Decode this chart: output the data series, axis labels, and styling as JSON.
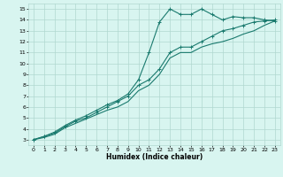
{
  "xlabel": "Humidex (Indice chaleur)",
  "bg_color": "#d8f5f0",
  "grid_color": "#b0d8d0",
  "line_color": "#1a7a6e",
  "xlim": [
    -0.5,
    23.5
  ],
  "ylim": [
    2.5,
    15.5
  ],
  "xticks": [
    0,
    1,
    2,
    3,
    4,
    5,
    6,
    7,
    8,
    9,
    10,
    11,
    12,
    13,
    14,
    15,
    16,
    17,
    18,
    19,
    20,
    21,
    22,
    23
  ],
  "yticks": [
    3,
    4,
    5,
    6,
    7,
    8,
    9,
    10,
    11,
    12,
    13,
    14,
    15
  ],
  "line2_x": [
    0,
    1,
    2,
    3,
    4,
    5,
    6,
    7,
    8,
    9,
    10,
    11,
    12,
    13,
    14,
    15,
    16,
    17,
    18,
    19,
    20,
    21,
    22,
    23
  ],
  "line2_y": [
    3.0,
    3.3,
    3.7,
    4.3,
    4.8,
    5.2,
    5.7,
    6.2,
    6.6,
    7.2,
    8.5,
    11.0,
    13.8,
    15.0,
    14.5,
    14.5,
    15.0,
    14.5,
    14.0,
    14.3,
    14.2,
    14.2,
    14.0,
    13.9
  ],
  "line1_x": [
    0,
    1,
    2,
    3,
    4,
    5,
    6,
    7,
    8,
    9,
    10,
    11,
    12,
    13,
    14,
    15,
    16,
    17,
    18,
    19,
    20,
    21,
    22,
    23
  ],
  "line1_y": [
    3.0,
    3.3,
    3.6,
    4.2,
    4.7,
    5.0,
    5.5,
    6.0,
    6.5,
    7.0,
    8.0,
    8.5,
    9.5,
    11.0,
    11.5,
    11.5,
    12.0,
    12.5,
    13.0,
    13.2,
    13.5,
    13.8,
    13.9,
    14.0
  ],
  "line3_x": [
    0,
    1,
    2,
    3,
    4,
    5,
    6,
    7,
    8,
    9,
    10,
    11,
    12,
    13,
    14,
    15,
    16,
    17,
    18,
    19,
    20,
    21,
    22,
    23
  ],
  "line3_y": [
    3.0,
    3.2,
    3.5,
    4.1,
    4.5,
    4.9,
    5.3,
    5.7,
    6.0,
    6.5,
    7.5,
    8.0,
    9.0,
    10.5,
    11.0,
    11.0,
    11.5,
    11.8,
    12.0,
    12.3,
    12.7,
    13.0,
    13.5,
    13.9
  ],
  "linewidth": 0.8,
  "markersize": 3,
  "tick_fontsize": 4.5,
  "xlabel_fontsize": 5.5
}
